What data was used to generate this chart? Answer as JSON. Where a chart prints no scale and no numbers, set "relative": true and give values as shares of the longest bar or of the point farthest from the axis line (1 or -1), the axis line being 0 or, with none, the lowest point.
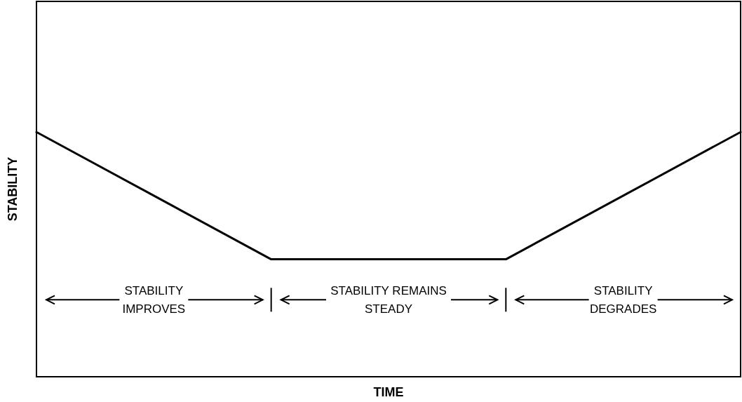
{
  "chart_data": {
    "type": "line",
    "relative": true,
    "xlabel": "TIME",
    "ylabel": "STABILITY",
    "categories": [
      null,
      null,
      null,
      null,
      null,
      null,
      null
    ],
    "series": [
      {
        "color": "#000000",
        "values": [
          1,
          0.74,
          0.48,
          0.48,
          0.48,
          0.74,
          1
        ]
      }
    ],
    "annotations": [
      "STABILITY\nIMPROVES",
      "STABILITY REMAINS\nSTEADY",
      "STABILITY\nDEGRADES"
    ],
    "grid": false
  }
}
